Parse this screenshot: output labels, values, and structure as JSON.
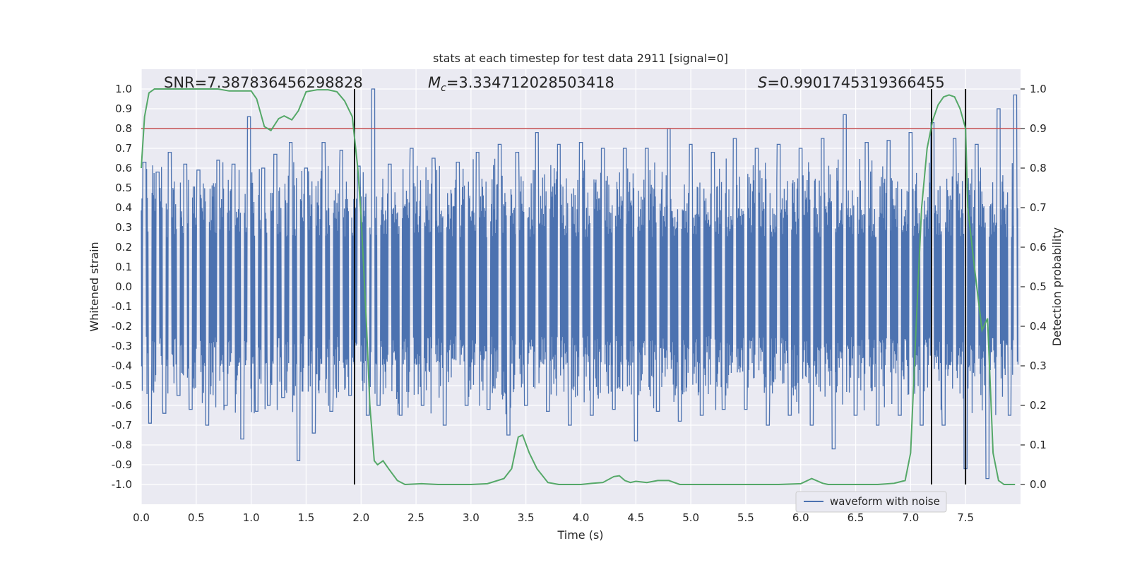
{
  "chart_data": {
    "type": "line",
    "title": "stats at each timestep for test data 2911 [signal=0]",
    "xlabel": "Time (s)",
    "ylabel": "Whitened strain",
    "ylabel_right": "Detection probability",
    "xlim": [
      0.0,
      8.0
    ],
    "ylim": [
      -1.1,
      1.1
    ],
    "ylim_right": [
      -0.05,
      1.05
    ],
    "xticks": [
      0.0,
      0.5,
      1.0,
      1.5,
      2.0,
      2.5,
      3.0,
      3.5,
      4.0,
      4.5,
      5.0,
      5.5,
      6.0,
      6.5,
      7.0,
      7.5
    ],
    "xtick_labels": [
      "0.0",
      "0.5",
      "1.0",
      "1.5",
      "2.0",
      "2.5",
      "3.0",
      "3.5",
      "4.0",
      "4.5",
      "5.0",
      "5.5",
      "6.0",
      "6.5",
      "7.0",
      "7.5"
    ],
    "yticks": [
      1.0,
      0.9,
      0.8,
      0.7,
      0.6,
      0.5,
      0.4,
      0.3,
      0.2,
      0.1,
      0.0,
      -0.1,
      -0.2,
      -0.3,
      -0.4,
      -0.5,
      -0.6,
      -0.7,
      -0.8,
      -0.9,
      -1.0
    ],
    "ytick_labels": [
      "1.0",
      "0.9",
      "0.8",
      "0.7",
      "0.6",
      "0.5",
      "0.4",
      "0.3",
      "0.2",
      "0.1",
      "0.0",
      "-0.1",
      "-0.2",
      "-0.3",
      "-0.4",
      "-0.5",
      "-0.6",
      "-0.7",
      "-0.8",
      "-0.9",
      "-1.0"
    ],
    "yticks_right": [
      1.0,
      0.9,
      0.8,
      0.7,
      0.6,
      0.5,
      0.4,
      0.3,
      0.2,
      0.1,
      0.0
    ],
    "ytick_labels_right": [
      "1.0",
      "0.9",
      "0.8",
      "0.7",
      "0.6",
      "0.5",
      "0.4",
      "0.3",
      "0.2",
      "0.1",
      "0.0"
    ],
    "grid": true,
    "legend": {
      "placement": "lower-right",
      "entries": [
        "waveform with noise"
      ]
    },
    "annotations": {
      "snr": "SNR=7.387836456298828",
      "mc_symbol": "M",
      "mc_sub": "c",
      "mc_value": "=3.334712028503418",
      "s_symbol": "S",
      "s_value": "=0.9901745319366455"
    },
    "threshold_line": {
      "y_right": 0.9,
      "color": "#c44e52"
    },
    "vertical_lines": [
      1.94,
      7.19,
      7.5
    ],
    "colors": {
      "waveform": "#4c72b0",
      "probability": "#55a868",
      "threshold": "#c44e52",
      "vlines": "#000000",
      "background": "#eaeaf2",
      "grid": "#ffffff"
    },
    "series": [
      {
        "name": "waveform with noise",
        "axis": "left",
        "envelope_note": "dense noisy strain trace",
        "x": [
          0.03,
          0.08,
          0.15,
          0.21,
          0.26,
          0.34,
          0.4,
          0.45,
          0.52,
          0.6,
          0.7,
          0.77,
          0.84,
          0.92,
          0.98,
          1.05,
          1.11,
          1.16,
          1.22,
          1.29,
          1.36,
          1.43,
          1.5,
          1.57,
          1.66,
          1.73,
          1.82,
          1.9,
          1.98,
          2.06,
          2.11,
          2.16,
          2.26,
          2.36,
          2.46,
          2.56,
          2.66,
          2.76,
          2.88,
          2.96,
          3.06,
          3.16,
          3.26,
          3.34,
          3.42,
          3.5,
          3.6,
          3.7,
          3.8,
          3.9,
          4.0,
          4.1,
          4.2,
          4.3,
          4.4,
          4.5,
          4.6,
          4.7,
          4.8,
          4.9,
          5.0,
          5.1,
          5.2,
          5.3,
          5.4,
          5.5,
          5.6,
          5.7,
          5.8,
          5.9,
          6.0,
          6.1,
          6.2,
          6.3,
          6.4,
          6.5,
          6.6,
          6.7,
          6.8,
          6.9,
          7.0,
          7.1,
          7.2,
          7.3,
          7.4,
          7.5,
          7.6,
          7.7,
          7.8,
          7.9,
          7.95
        ],
        "values": [
          0.63,
          -0.69,
          0.58,
          -0.64,
          0.68,
          -0.55,
          0.62,
          -0.62,
          0.59,
          -0.7,
          0.64,
          -0.6,
          0.62,
          -0.77,
          0.86,
          -0.63,
          0.6,
          -0.6,
          0.67,
          -0.56,
          0.73,
          -0.88,
          0.6,
          -0.74,
          0.73,
          -0.63,
          0.69,
          -0.55,
          0.61,
          -0.65,
          1.0,
          -0.6,
          0.62,
          -0.65,
          0.7,
          -0.6,
          0.65,
          -0.7,
          0.63,
          -0.6,
          0.68,
          -0.62,
          0.72,
          -0.75,
          0.68,
          -0.6,
          0.78,
          -0.63,
          0.72,
          -0.7,
          0.73,
          -0.65,
          0.7,
          -0.62,
          0.7,
          -0.78,
          0.7,
          -0.63,
          0.8,
          -0.68,
          0.72,
          -0.65,
          0.68,
          -0.62,
          0.75,
          -0.62,
          0.7,
          -0.7,
          0.72,
          -0.65,
          0.7,
          -0.7,
          0.75,
          -0.82,
          0.87,
          -0.65,
          0.73,
          -0.7,
          0.74,
          -0.65,
          0.78,
          -0.7,
          0.83,
          -0.7,
          0.75,
          -0.92,
          0.72,
          -0.97,
          0.9,
          -0.65,
          0.97
        ]
      },
      {
        "name": "",
        "axis": "right",
        "x": [
          0.0,
          0.03,
          0.07,
          0.12,
          0.2,
          0.3,
          0.4,
          0.5,
          0.6,
          0.7,
          0.8,
          0.9,
          1.0,
          1.05,
          1.12,
          1.18,
          1.25,
          1.3,
          1.37,
          1.43,
          1.5,
          1.6,
          1.7,
          1.78,
          1.85,
          1.92,
          1.97,
          2.0,
          2.05,
          2.08,
          2.12,
          2.15,
          2.2,
          2.25,
          2.33,
          2.4,
          2.55,
          2.7,
          2.85,
          3.0,
          3.15,
          3.3,
          3.37,
          3.43,
          3.47,
          3.53,
          3.6,
          3.7,
          3.8,
          3.9,
          4.0,
          4.1,
          4.2,
          4.3,
          4.35,
          4.4,
          4.45,
          4.5,
          4.6,
          4.7,
          4.8,
          4.9,
          5.0,
          5.2,
          5.4,
          5.6,
          5.8,
          6.0,
          6.1,
          6.2,
          6.25,
          6.35,
          6.5,
          6.7,
          6.85,
          6.95,
          7.0,
          7.05,
          7.1,
          7.15,
          7.2,
          7.25,
          7.3,
          7.35,
          7.4,
          7.45,
          7.5,
          7.52,
          7.58,
          7.65,
          7.7,
          7.75,
          7.8,
          7.85,
          7.9,
          7.95
        ],
        "values": [
          0.8,
          0.93,
          0.99,
          1.0,
          1.0,
          1.0,
          1.0,
          1.0,
          1.0,
          1.0,
          0.995,
          0.995,
          0.995,
          0.975,
          0.905,
          0.895,
          0.925,
          0.932,
          0.922,
          0.945,
          0.993,
          0.998,
          0.998,
          0.993,
          0.97,
          0.93,
          0.8,
          0.68,
          0.4,
          0.2,
          0.06,
          0.05,
          0.06,
          0.04,
          0.01,
          0.0,
          0.002,
          0.0,
          0.0,
          0.0,
          0.002,
          0.015,
          0.04,
          0.12,
          0.125,
          0.08,
          0.04,
          0.005,
          0.0,
          0.0,
          0.0,
          0.003,
          0.005,
          0.02,
          0.022,
          0.01,
          0.005,
          0.008,
          0.005,
          0.01,
          0.01,
          0.0,
          0.0,
          0.0,
          0.0,
          0.0,
          0.0,
          0.002,
          0.015,
          0.003,
          0.0,
          0.0,
          0.0,
          0.0,
          0.003,
          0.01,
          0.08,
          0.4,
          0.7,
          0.85,
          0.92,
          0.96,
          0.98,
          0.985,
          0.98,
          0.95,
          0.9,
          0.7,
          0.55,
          0.39,
          0.42,
          0.08,
          0.01,
          0.0,
          0.0,
          0.0
        ]
      }
    ]
  }
}
